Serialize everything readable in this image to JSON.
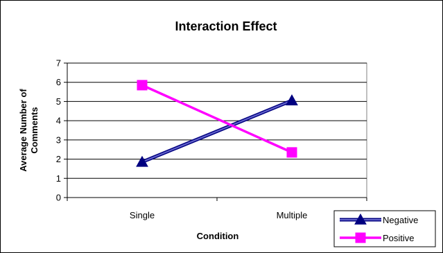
{
  "chart_data": {
    "type": "line",
    "title": "Interaction Effect",
    "xlabel": "Condition",
    "ylabel_lines": [
      "Average Number of",
      "Comments"
    ],
    "categories": [
      "Single",
      "Multiple"
    ],
    "ylim": [
      0,
      7
    ],
    "yticks": [
      0,
      1,
      2,
      3,
      4,
      5,
      6,
      7
    ],
    "grid": true,
    "legend_position": "bottom-right",
    "series": [
      {
        "name": "Negative",
        "values": [
          1.85,
          5.05
        ],
        "color": "#000080",
        "line_color": "#6666cc",
        "marker": "triangle"
      },
      {
        "name": "Positive",
        "values": [
          5.85,
          2.35
        ],
        "color": "#ff00ff",
        "line_color": "#ff00ff",
        "marker": "square"
      }
    ]
  }
}
